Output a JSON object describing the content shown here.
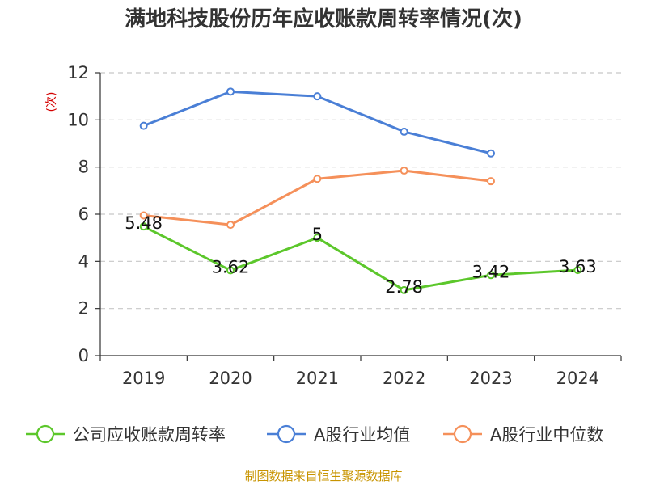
{
  "chart_data": {
    "type": "line",
    "title": "满地科技股份历年应收账款周转率情况(次)",
    "ylabel": "(次)",
    "categories": [
      "2019",
      "2020",
      "2021",
      "2022",
      "2023",
      "2024"
    ],
    "y_ticks": [
      "0",
      "2",
      "4",
      "6",
      "8",
      "10",
      "12"
    ],
    "ylim": [
      0,
      12
    ],
    "grid": "horizontal dashed",
    "legend_position": "bottom",
    "series": [
      {
        "name": "公司应收账款周转率",
        "color": "#5cc72b",
        "values": [
          5.48,
          3.62,
          5,
          2.78,
          3.42,
          3.63
        ],
        "labels": [
          "5.48",
          "3.62",
          "5",
          "2.78",
          "3.42",
          "3.63"
        ]
      },
      {
        "name": "A股行业均值",
        "color": "#4a7fd6",
        "values": [
          9.75,
          11.2,
          11.0,
          9.5,
          8.58,
          null
        ]
      },
      {
        "name": "A股行业中位数",
        "color": "#f5905a",
        "values": [
          5.95,
          5.55,
          7.5,
          7.85,
          7.4,
          null
        ]
      }
    ]
  },
  "source": "制图数据来自恒生聚源数据库"
}
